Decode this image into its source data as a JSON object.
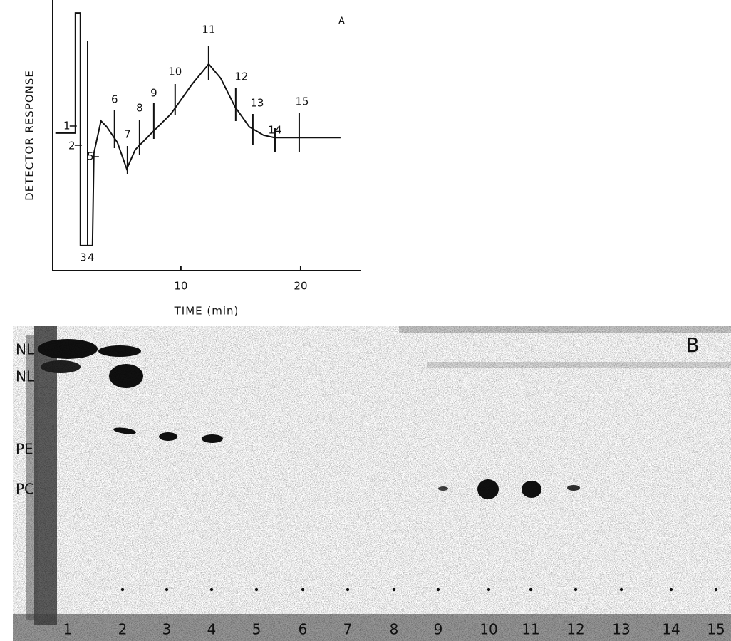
{
  "chart_data": {
    "type": "line",
    "panel_label": "A",
    "x_label": "TIME (min)",
    "y_label": "DETECTOR RESPONSE",
    "xlim": [
      -0.7,
      25
    ],
    "xticks": [
      10,
      20
    ],
    "ylim": [
      0,
      100
    ],
    "series": [
      {
        "color": "#111111",
        "x": [
          -0.48,
          1.19,
          1.19,
          1.61,
          1.61,
          2.62,
          2.74,
          3.33,
          3.81,
          4.7,
          5.48,
          6.19,
          7.38,
          9.17,
          10.95,
          12.32,
          13.33,
          14.52,
          15.71,
          16.9,
          17.8,
          23.33
        ],
        "values": [
          52.2,
          52.2,
          97.8,
          97.8,
          9.5,
          9.5,
          44.6,
          56.8,
          54.6,
          48.6,
          38.6,
          45.9,
          51.4,
          59.5,
          70.8,
          78.4,
          73.0,
          62.2,
          54.6,
          51.4,
          50.5,
          50.5
        ]
      }
    ],
    "fractions": [
      {
        "label": "1",
        "time": 1.19
      },
      {
        "label": "2",
        "time": 1.61
      },
      {
        "label": "3",
        "time": 1.73
      },
      {
        "label": "4",
        "time": 2.38
      },
      {
        "label": "5",
        "time": 3.04
      },
      {
        "label": "6",
        "time": 4.46
      },
      {
        "label": "7",
        "time": 5.54
      },
      {
        "label": "8",
        "time": 6.55
      },
      {
        "label": "9",
        "time": 7.74
      },
      {
        "label": "10",
        "time": 9.52
      },
      {
        "label": "11",
        "time": 12.32
      },
      {
        "label": "12",
        "time": 14.58
      },
      {
        "label": "13",
        "time": 16.01
      },
      {
        "label": "14",
        "time": 17.86
      },
      {
        "label": "15",
        "time": 19.88
      }
    ]
  },
  "panel_b": {
    "panel_label": "B",
    "row_labels": [
      "NL",
      "NL",
      "PE",
      "PC"
    ],
    "lanes": [
      "1",
      "2",
      "3",
      "4",
      "5",
      "6",
      "7",
      "8",
      "9",
      "10",
      "11",
      "12",
      "13",
      "14",
      "15"
    ]
  }
}
